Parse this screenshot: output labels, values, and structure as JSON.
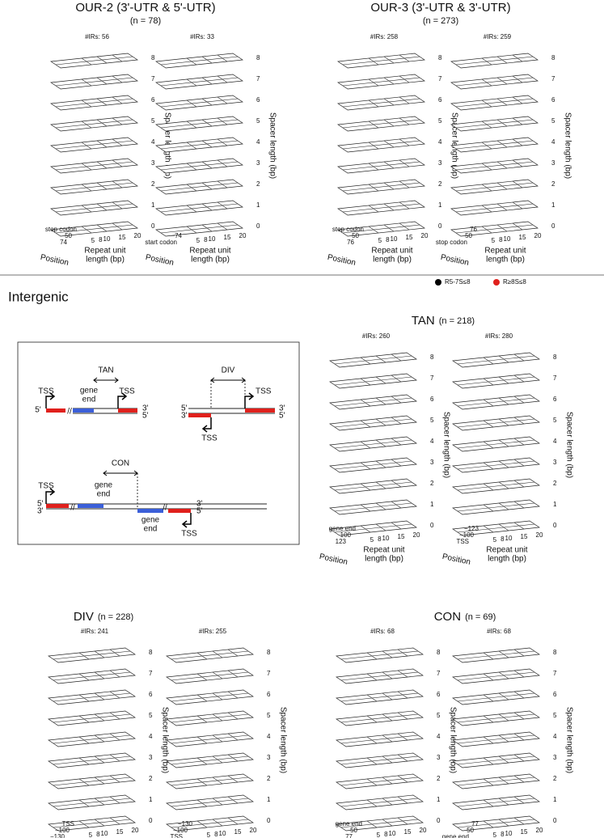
{
  "sections": [
    {
      "title": "OUR-2 (3'-UTR & 5'-UTR)",
      "n": "(n = 78)",
      "panels": [
        {
          "count": "#IRs: 56",
          "position_ticks": [
            "stop codon",
            "50",
            "74"
          ]
        },
        {
          "count": "#IRs: 33",
          "position_ticks": [
            "−74",
            "start codon"
          ]
        }
      ]
    },
    {
      "title": "OUR-3 (3'-UTR & 3'-UTR)",
      "n": "(n = 273)",
      "panels": [
        {
          "count": "#IRs: 258",
          "position_ticks": [
            "stop codon",
            "50",
            "76"
          ]
        },
        {
          "count": "#IRs: 259",
          "position_ticks": [
            "76",
            "50",
            "stop codon"
          ]
        }
      ]
    },
    {
      "title": "TAN",
      "n": "(n = 218)",
      "panels": [
        {
          "count": "#IRs: 260",
          "position_ticks": [
            "gene end",
            "100",
            "123"
          ]
        },
        {
          "count": "#IRs: 280",
          "position_ticks": [
            "−123",
            "−100",
            "TSS"
          ]
        }
      ]
    },
    {
      "title": "DIV",
      "n": "(n = 228)",
      "panels": [
        {
          "count": "#IRs: 241",
          "position_ticks": [
            "TSS",
            "−100",
            "−130"
          ]
        },
        {
          "count": "#IRs: 255",
          "position_ticks": [
            "−130",
            "−100",
            "TSS"
          ]
        }
      ]
    },
    {
      "title": "CON",
      "n": "(n = 69)",
      "panels": [
        {
          "count": "#IRs: 68",
          "position_ticks": [
            "gene end",
            "50",
            "77"
          ]
        },
        {
          "count": "#IRs: 68",
          "position_ticks": [
            "77",
            "50",
            "gene end"
          ]
        }
      ]
    }
  ],
  "spacer_levels": [
    "0",
    "1",
    "2",
    "3",
    "4",
    "5",
    "6",
    "7",
    "8"
  ],
  "repeat_ticks": [
    "5",
    "8",
    "10",
    "15",
    "20"
  ],
  "axis_labels": {
    "spacer": "Spacer length (bp)",
    "position": "Position",
    "repeat": [
      "Repeat unit",
      "length (bp)"
    ]
  },
  "intergenic": "Intergenic",
  "legend": [
    {
      "label": "R5-7S≤8",
      "color": "#000000"
    },
    {
      "label": "R≥8S≤8",
      "color": "#e0201c"
    }
  ],
  "diagram": {
    "tan": "TAN",
    "div": "DIV",
    "con": "CON",
    "tss": "TSS",
    "gene_end": [
      "gene",
      "end"
    ],
    "five": "5'",
    "three": "3'",
    "brk": "//"
  }
}
